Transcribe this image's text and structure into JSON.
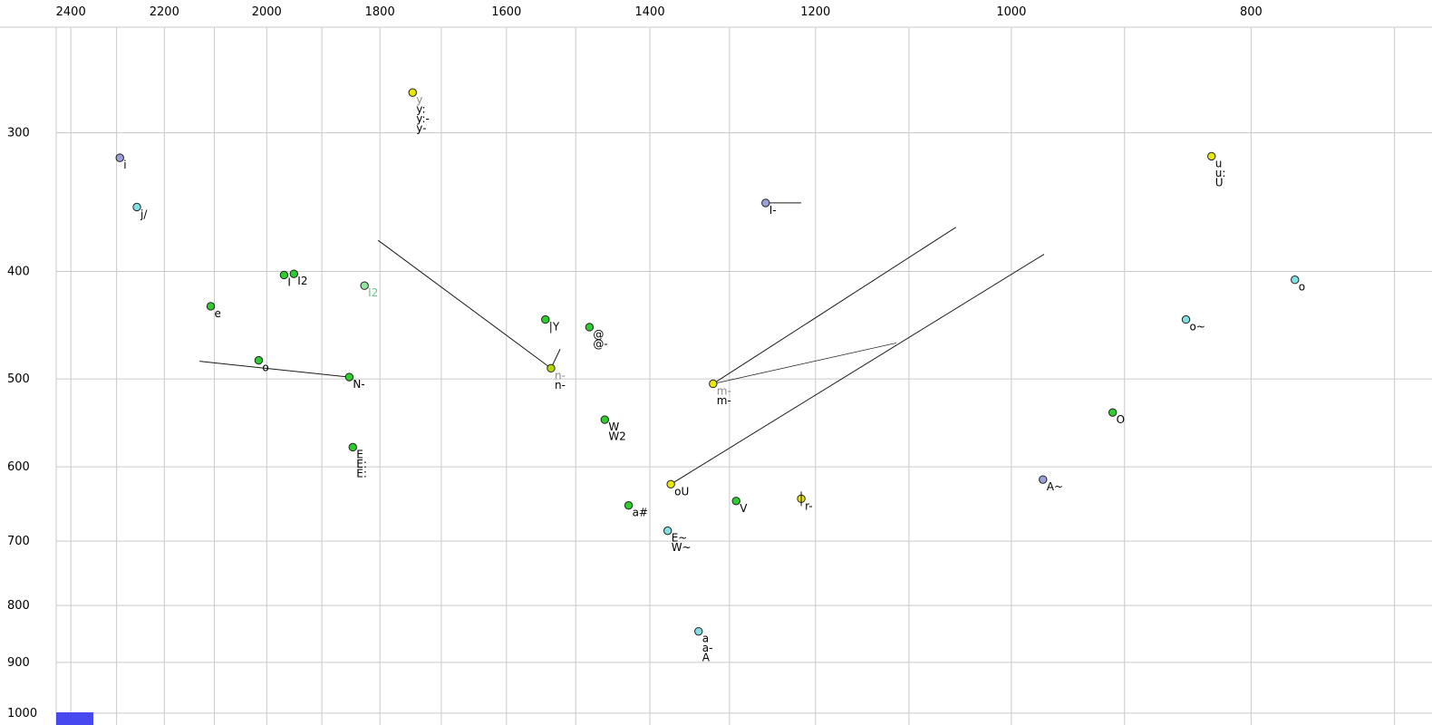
{
  "chart_data": {
    "type": "scatter",
    "x_axis": {
      "scale": "log",
      "reversed": true,
      "tick_labels": [
        2400,
        2200,
        2000,
        1800,
        1600,
        1400,
        1200,
        1000,
        800
      ],
      "grid_step": 100,
      "grid_range": [
        700,
        2400
      ],
      "domain": [
        2433,
        676
      ]
    },
    "y_axis": {
      "scale": "log",
      "reversed": false,
      "tick_labels": [
        300,
        400,
        500,
        600,
        700,
        800,
        900,
        1000
      ],
      "grid_step": 100,
      "grid_range": [
        300,
        1000
      ],
      "domain": [
        241,
        1025
      ]
    },
    "points": [
      {
        "f2": 2293,
        "f1": 316,
        "color": "lavender",
        "labels": [
          {
            "text": "i"
          }
        ]
      },
      {
        "f2": 2257,
        "f1": 350,
        "color": "cyan",
        "labels": [
          {
            "text": "j/"
          }
        ]
      },
      {
        "f2": 1968,
        "f1": 403,
        "color": "green",
        "labels": [
          {
            "text": "I"
          }
        ]
      },
      {
        "f2": 1950,
        "f1": 402,
        "color": "green",
        "labels": [
          {
            "text": "I2"
          }
        ]
      },
      {
        "f2": 1826,
        "f1": 412,
        "color": "light_green",
        "labels": [
          {
            "text": "I2",
            "color": "light_green_text"
          }
        ]
      },
      {
        "f2": 2107,
        "f1": 430,
        "color": "green",
        "labels": [
          {
            "text": "e"
          }
        ]
      },
      {
        "f2": 2015,
        "f1": 481,
        "color": "green",
        "labels": [
          {
            "text": "o"
          }
        ]
      },
      {
        "f2": 1852,
        "f1": 498,
        "color": "green",
        "labels": [
          {
            "text": "N-"
          }
        ]
      },
      {
        "f2": 1846,
        "f1": 576,
        "color": "green",
        "labels": [
          {
            "text": "E"
          },
          {
            "text": "E:"
          },
          {
            "text": "E:"
          }
        ]
      },
      {
        "f2": 1746,
        "f1": 276,
        "color": "yellow",
        "labels": [
          {
            "text": "y",
            "color": "gray"
          },
          {
            "text": "y:"
          },
          {
            "text": "y:-"
          },
          {
            "text": "y-"
          }
        ]
      },
      {
        "f2": 1543,
        "f1": 442,
        "color": "green",
        "labels": [
          {
            "text": "|Y"
          }
        ]
      },
      {
        "f2": 1481,
        "f1": 449,
        "color": "green",
        "labels": [
          {
            "text": "@"
          },
          {
            "text": "@-"
          }
        ]
      },
      {
        "f2": 1535,
        "f1": 489,
        "color": "yellow_green",
        "labels": [
          {
            "text": "n-",
            "color": "gray"
          },
          {
            "text": "n-"
          }
        ]
      },
      {
        "f2": 1320,
        "f1": 505,
        "color": "yellow",
        "labels": [
          {
            "text": "m-",
            "color": "gray"
          },
          {
            "text": "m-"
          }
        ]
      },
      {
        "f2": 1460,
        "f1": 544,
        "color": "green",
        "labels": [
          {
            "text": "W"
          },
          {
            "text": "W2"
          }
        ]
      },
      {
        "f2": 1373,
        "f1": 622,
        "color": "yellow",
        "labels": [
          {
            "text": "oU"
          }
        ]
      },
      {
        "f2": 1428,
        "f1": 650,
        "color": "green",
        "labels": [
          {
            "text": "a#"
          }
        ]
      },
      {
        "f2": 1292,
        "f1": 644,
        "color": "green",
        "labels": [
          {
            "text": "V"
          }
        ]
      },
      {
        "f2": 1216,
        "f1": 641,
        "color": "yellow",
        "marker": "vline",
        "labels": [
          {
            "text": "r-"
          }
        ]
      },
      {
        "f2": 1377,
        "f1": 685,
        "color": "cyan",
        "labels": [
          {
            "text": "E~"
          },
          {
            "text": "W~"
          }
        ]
      },
      {
        "f2": 1338,
        "f1": 844,
        "color": "cyan",
        "labels": [
          {
            "text": "a"
          },
          {
            "text": "a-"
          },
          {
            "text": "A"
          }
        ]
      },
      {
        "f2": 971,
        "f1": 616,
        "color": "lavender",
        "labels": [
          {
            "text": "A~"
          }
        ]
      },
      {
        "f2": 910,
        "f1": 536,
        "color": "green",
        "labels": [
          {
            "text": "O"
          }
        ]
      },
      {
        "f2": 850,
        "f1": 442,
        "color": "cyan",
        "labels": [
          {
            "text": "o~"
          }
        ]
      },
      {
        "f2": 768,
        "f1": 407,
        "color": "cyan",
        "labels": [
          {
            "text": "o"
          }
        ]
      },
      {
        "f2": 830,
        "f1": 315,
        "color": "yellow",
        "labels": [
          {
            "text": "u"
          },
          {
            "text": "u:"
          },
          {
            "text": "U"
          }
        ]
      },
      {
        "f2": 1257,
        "f1": 347,
        "color": "lavender",
        "labels": [
          {
            "text": "I-"
          }
        ]
      }
    ],
    "lines": [
      {
        "from": [
          1803,
          375
        ],
        "to": [
          1535,
          489
        ]
      },
      {
        "from": [
          1535,
          489
        ],
        "to": [
          1522,
          470
        ]
      },
      {
        "from": [
          2129,
          482
        ],
        "to": [
          1852,
          498
        ]
      },
      {
        "from": [
          1257,
          347
        ],
        "to": [
          1216,
          347
        ]
      },
      {
        "from": [
          1320,
          505
        ],
        "to": [
          1053,
          365
        ]
      },
      {
        "from": [
          1320,
          505
        ],
        "to": [
          1113,
          464
        ],
        "thin": true
      },
      {
        "from": [
          1373,
          622
        ],
        "to": [
          970,
          386
        ]
      }
    ],
    "colors": {
      "yellow": "#ece900",
      "green": "#2ecc2e",
      "yellow_green": "#b8d400",
      "light_green": "#8fe89b",
      "cyan": "#7fdfe3",
      "lavender": "#9aa0dc",
      "gray": "#8a8a8a",
      "light_green_text": "#63c78a",
      "grid": "#c9c9c9",
      "line": "#1a1a1a",
      "text": "#000000"
    }
  },
  "ui": {
    "scrollbar_thumb_color": "#4848f0"
  }
}
